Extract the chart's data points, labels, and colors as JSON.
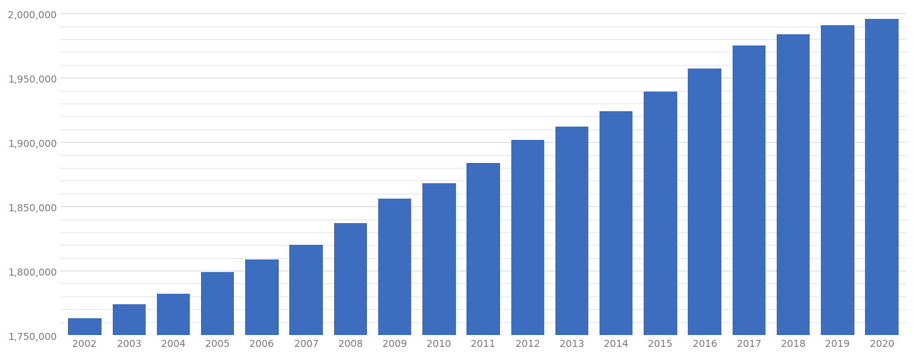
{
  "years": [
    2002,
    2003,
    2004,
    2005,
    2006,
    2007,
    2008,
    2009,
    2010,
    2011,
    2012,
    2013,
    2014,
    2015,
    2016,
    2017,
    2018,
    2019,
    2020
  ],
  "values": [
    1763000,
    1774000,
    1782000,
    1799000,
    1809000,
    1820000,
    1837000,
    1856000,
    1868000,
    1884000,
    1902000,
    1912000,
    1924000,
    1939000,
    1957000,
    1975000,
    1984000,
    1991000,
    1996000
  ],
  "bar_color": "#3d6dbf",
  "ylim_min": 1750000,
  "ylim_max": 2005000,
  "yticks": [
    1750000,
    1800000,
    1850000,
    1900000,
    1950000,
    2000000
  ],
  "background_color": "#ffffff",
  "grid_color": "#d8d8d8",
  "tick_label_color": "#757575",
  "bar_width": 0.75,
  "minor_grid_interval": 10000
}
